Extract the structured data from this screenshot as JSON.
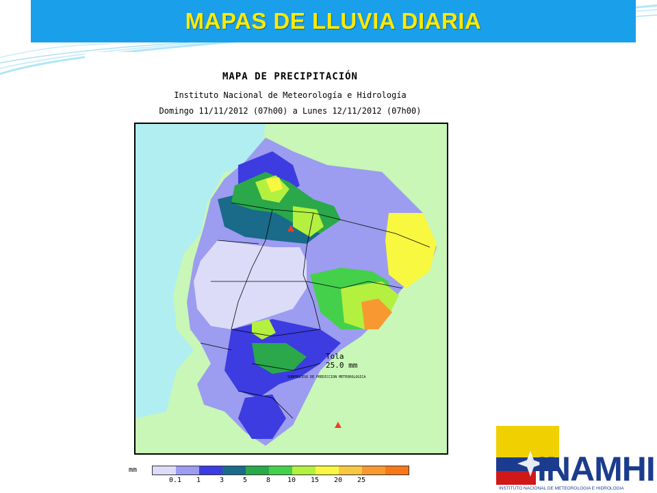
{
  "slide": {
    "title": "MAPAS DE LLUVIA DIARIA"
  },
  "map": {
    "title": "MAPA DE PRECIPITACIÓN",
    "institution": "Instituto Nacional de Meteorología e Hidrología",
    "period": "Domingo 11/11/2012 (07h00) a Lunes 12/11/2012 (07h00)",
    "station_marker": {
      "name": "Tola",
      "value_label": "25.0 mm",
      "color": "#e8402a"
    },
    "credit": "SUBPROCESO DE PREDICCION METEOROLOGICA",
    "ocean_color": "#b0eef2",
    "background_color": "#c8f7b7"
  },
  "legend": {
    "unit": "mm",
    "colors": [
      "#dcdcf8",
      "#9c9cf0",
      "#3c3ce0",
      "#1a6a8a",
      "#2aa84a",
      "#44d04a",
      "#b4f040",
      "#f8f840",
      "#f8c840",
      "#f89830",
      "#f87818"
    ],
    "ticks": [
      "0.1",
      "1",
      "3",
      "5",
      "8",
      "10",
      "15",
      "20",
      "25"
    ]
  },
  "logo": {
    "name": "INAMHI",
    "subtitle": "INSTITUTO NACIONAL DE METEOROLOGIA E HIDROLOGIA",
    "colors": {
      "yellow": "#f0d000",
      "blue": "#1b3c8e",
      "red": "#d01818"
    }
  }
}
